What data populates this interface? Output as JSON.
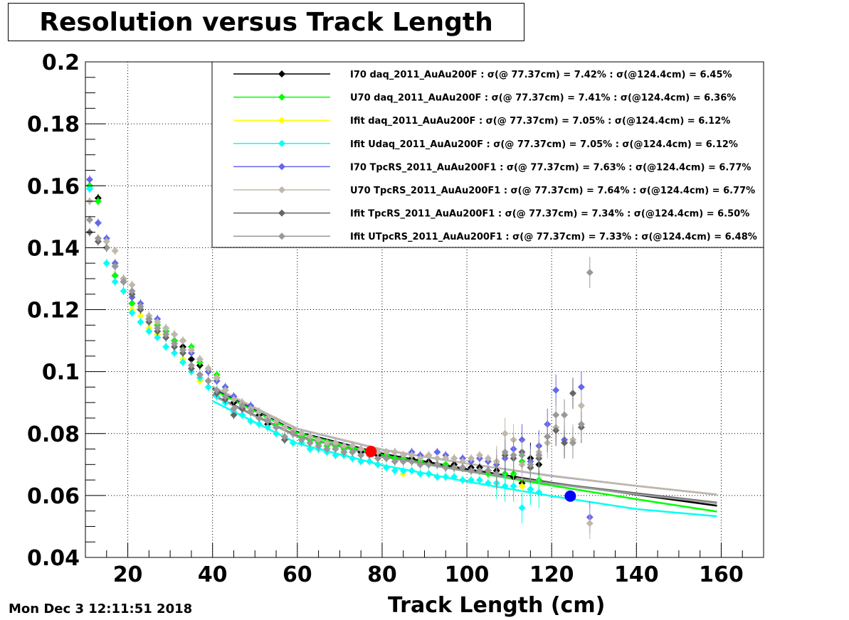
{
  "title": "Resolution versus Track Length",
  "timestamp": "Mon Dec  3 12:11:51 2018",
  "chart_data": {
    "type": "scatter",
    "title": "Resolution versus Track Length",
    "xlabel": "Track Length (cm)",
    "ylabel": "",
    "xlim": [
      10,
      170
    ],
    "ylim": [
      0.04,
      0.2
    ],
    "xticks": [
      20,
      40,
      60,
      80,
      100,
      120,
      140,
      160
    ],
    "xtick_labels": [
      "20",
      "40",
      "60",
      "80",
      "100",
      "120",
      "140",
      "160"
    ],
    "yticks": [
      0.04,
      0.06,
      0.08,
      0.1,
      0.12,
      0.14,
      0.16,
      0.18,
      0.2
    ],
    "ytick_labels": [
      "0.04",
      "0.06",
      "0.08",
      "0.1",
      "0.12",
      "0.14",
      "0.16",
      "0.18",
      "0.2"
    ],
    "grid": true,
    "legend_position": "top-right",
    "x": [
      11,
      13,
      15,
      17,
      19,
      21,
      23,
      25,
      27,
      29,
      31,
      33,
      35,
      37,
      39,
      41,
      43,
      45,
      47,
      49,
      51,
      53,
      55,
      57,
      59,
      61,
      63,
      65,
      67,
      69,
      71,
      73,
      75,
      77,
      79,
      81,
      83,
      85,
      87,
      89,
      91,
      93,
      95,
      97,
      99,
      101,
      103,
      105,
      107,
      109,
      111,
      113,
      115,
      117,
      119,
      121,
      123,
      125,
      127,
      129
    ],
    "series": [
      {
        "name": "I70  daq_2011_AuAu200F : σ(@ 77.37cm) =  7.42% : σ(@124.4cm) =  6.45%",
        "color": "#000000",
        "fit": {
          "x": [
            40,
            60,
            80,
            100,
            120,
            140,
            159
          ],
          "y": [
            0.0945,
            0.0805,
            0.0735,
            0.0685,
            0.0641,
            0.0603,
            0.0567
          ]
        },
        "values": [
          0.16,
          0.156,
          0.14,
          0.131,
          0.13,
          0.122,
          0.12,
          0.117,
          0.115,
          0.113,
          0.11,
          0.108,
          0.104,
          0.102,
          0.1,
          0.098,
          0.094,
          0.09,
          0.088,
          0.087,
          0.086,
          0.083,
          0.084,
          0.082,
          0.08,
          0.079,
          0.078,
          0.077,
          0.077,
          0.076,
          0.075,
          0.075,
          0.074,
          0.074,
          0.073,
          0.073,
          0.072,
          0.072,
          0.072,
          0.071,
          0.071,
          0.07,
          0.07,
          0.07,
          0.069,
          0.069,
          0.069,
          0.068,
          0.068,
          0.067,
          0.066,
          0.064,
          0.072,
          0.07,
          null,
          null,
          null,
          null,
          null,
          null
        ]
      },
      {
        "name": "U70  daq_2011_AuAu200F : σ(@ 77.37cm) =  7.41% : σ(@124.4cm) =  6.36%",
        "color": "#00ff00",
        "fit": {
          "x": [
            40,
            60,
            80,
            100,
            120,
            140,
            159
          ],
          "y": [
            0.0942,
            0.0802,
            0.0731,
            0.0679,
            0.0632,
            0.0588,
            0.0548
          ]
        },
        "values": [
          0.16,
          0.155,
          0.14,
          0.131,
          0.129,
          0.122,
          0.12,
          0.117,
          0.115,
          0.113,
          0.11,
          0.107,
          0.108,
          0.103,
          0.101,
          0.099,
          0.095,
          0.092,
          0.09,
          0.088,
          0.087,
          0.085,
          0.083,
          0.082,
          0.081,
          0.079,
          0.078,
          0.077,
          0.076,
          0.076,
          0.075,
          0.075,
          0.075,
          0.074,
          0.074,
          0.073,
          0.072,
          0.072,
          0.071,
          0.071,
          0.07,
          0.07,
          0.07,
          0.069,
          0.069,
          0.068,
          0.068,
          0.067,
          0.067,
          0.067,
          0.067,
          0.071,
          0.062,
          0.065,
          null,
          null,
          null,
          null,
          null,
          null
        ]
      },
      {
        "name": "Ifit daq_2011_AuAu200F : σ(@ 77.37cm) =  7.05% : σ(@124.4cm) =  6.12%",
        "color": "#ffff00",
        "fit": {
          "x": [
            40,
            60,
            80,
            100,
            120,
            140,
            159
          ],
          "y": [
            0.0905,
            0.0768,
            0.0698,
            0.0645,
            0.0598,
            0.0556,
            0.0533
          ]
        },
        "values": [
          0.159,
          0.148,
          0.135,
          0.129,
          0.126,
          0.12,
          0.118,
          0.114,
          0.112,
          0.108,
          0.106,
          0.104,
          0.1,
          0.097,
          0.095,
          0.092,
          0.09,
          0.087,
          0.086,
          0.084,
          0.083,
          0.082,
          0.08,
          0.079,
          0.077,
          0.077,
          0.075,
          0.075,
          0.074,
          0.073,
          0.073,
          0.072,
          0.071,
          0.071,
          0.07,
          0.069,
          0.068,
          0.067,
          0.068,
          0.067,
          0.067,
          0.066,
          0.066,
          0.066,
          0.065,
          0.065,
          0.065,
          0.064,
          0.064,
          0.063,
          0.063,
          0.063,
          0.062,
          0.061,
          null,
          null,
          null,
          null,
          null,
          null
        ]
      },
      {
        "name": "Ifit Udaq_2011_AuAu200F : σ(@ 77.37cm) =  7.05% : σ(@124.4cm) =  6.12%",
        "color": "#00ffff",
        "fit": {
          "x": [
            40,
            60,
            80,
            100,
            120,
            140,
            159
          ],
          "y": [
            0.0905,
            0.0768,
            0.0698,
            0.0645,
            0.0598,
            0.0556,
            0.0533
          ]
        },
        "values": [
          0.159,
          0.148,
          0.135,
          0.129,
          0.126,
          0.119,
          0.116,
          0.113,
          0.111,
          0.108,
          0.106,
          0.103,
          0.1,
          0.098,
          0.095,
          0.092,
          0.09,
          0.087,
          0.086,
          0.084,
          0.083,
          0.082,
          0.08,
          0.079,
          0.077,
          0.077,
          0.075,
          0.075,
          0.074,
          0.073,
          0.073,
          0.072,
          0.071,
          0.071,
          0.07,
          0.069,
          0.068,
          0.068,
          0.068,
          0.067,
          0.067,
          0.066,
          0.066,
          0.066,
          0.065,
          0.065,
          0.065,
          0.064,
          0.064,
          0.063,
          0.063,
          0.056,
          0.062,
          0.061,
          null,
          null,
          null,
          null,
          null,
          null
        ]
      },
      {
        "name": "I70  TpcRS_2011_AuAu200F1 : σ(@ 77.37cm) =  7.63% : σ(@124.4cm) =  6.77%",
        "color": "#6666ee",
        "fit": {
          "x": [
            40,
            60,
            80,
            100,
            120,
            140,
            159
          ],
          "y": [
            0.095,
            0.0815,
            0.0748,
            0.0703,
            0.0663,
            0.0631,
            0.0603
          ]
        },
        "values": [
          0.162,
          0.148,
          0.143,
          0.135,
          0.129,
          0.124,
          0.122,
          0.118,
          0.117,
          0.114,
          0.112,
          0.11,
          0.106,
          0.104,
          0.1,
          0.097,
          0.095,
          0.092,
          0.09,
          0.089,
          0.087,
          0.085,
          0.084,
          0.082,
          0.081,
          0.08,
          0.079,
          0.078,
          0.077,
          0.077,
          0.076,
          0.076,
          0.075,
          0.075,
          0.074,
          0.074,
          0.074,
          0.073,
          0.074,
          0.073,
          0.073,
          0.074,
          0.073,
          0.072,
          0.072,
          0.071,
          0.072,
          0.071,
          0.07,
          0.072,
          0.075,
          0.078,
          0.071,
          0.076,
          0.083,
          0.094,
          0.078,
          0.077,
          0.095,
          0.053
        ]
      },
      {
        "name": "U70  TpcRS_2011_AuAu200F1 : σ(@ 77.37cm) =  7.64% : σ(@124.4cm) =  6.77%",
        "color": "#c0b8a8",
        "fit": {
          "x": [
            40,
            60,
            80,
            100,
            120,
            140,
            159
          ],
          "y": [
            0.0952,
            0.0816,
            0.0749,
            0.0703,
            0.0664,
            0.0631,
            0.0603
          ]
        },
        "values": [
          0.155,
          0.143,
          0.142,
          0.139,
          0.13,
          0.128,
          0.12,
          0.118,
          0.116,
          0.114,
          0.112,
          0.11,
          0.107,
          0.104,
          0.101,
          0.098,
          0.094,
          0.091,
          0.09,
          0.088,
          0.087,
          0.085,
          0.084,
          0.082,
          0.081,
          0.08,
          0.079,
          0.078,
          0.077,
          0.077,
          0.076,
          0.076,
          0.075,
          0.075,
          0.074,
          0.074,
          0.074,
          0.073,
          0.073,
          0.072,
          0.073,
          0.072,
          0.072,
          0.072,
          0.071,
          0.072,
          0.073,
          0.072,
          0.071,
          0.08,
          0.078,
          0.07,
          0.069,
          0.074,
          0.077,
          0.082,
          0.086,
          0.078,
          0.089,
          0.051
        ]
      },
      {
        "name": "Ifit TpcRS_2011_AuAu200F1 : σ(@ 77.37cm) =  7.34% : σ(@124.4cm) =  6.50%",
        "color": "#666666",
        "fit": {
          "x": [
            40,
            60,
            80,
            100,
            120,
            140,
            159
          ],
          "y": [
            0.0925,
            0.0792,
            0.0727,
            0.068,
            0.064,
            0.0607,
            0.0577
          ]
        },
        "values": [
          0.145,
          0.142,
          0.14,
          0.134,
          0.129,
          0.125,
          0.12,
          0.116,
          0.113,
          0.111,
          0.108,
          0.106,
          0.101,
          0.099,
          0.097,
          0.093,
          0.091,
          0.086,
          0.088,
          0.087,
          0.085,
          0.084,
          0.082,
          0.078,
          0.08,
          0.078,
          0.077,
          0.076,
          0.075,
          0.075,
          0.074,
          0.074,
          0.073,
          0.073,
          0.072,
          0.072,
          0.071,
          0.071,
          0.071,
          0.07,
          0.07,
          0.07,
          0.069,
          0.069,
          0.069,
          0.068,
          0.068,
          0.068,
          0.067,
          0.073,
          0.072,
          0.074,
          0.069,
          0.072,
          0.079,
          0.081,
          0.077,
          0.093,
          0.082,
          null
        ]
      },
      {
        "name": "Ifit UTpcRS_2011_AuAu200F1 : σ(@ 77.37cm) =  7.33% : σ(@124.4cm) =  6.48%",
        "color": "#999999",
        "fit": {
          "x": [
            40,
            60,
            80,
            100,
            120,
            140,
            159
          ],
          "y": [
            0.0923,
            0.079,
            0.0725,
            0.0678,
            0.0638,
            0.0604,
            0.0575
          ]
        },
        "values": [
          0.149,
          0.143,
          0.14,
          0.134,
          0.129,
          0.126,
          0.121,
          0.117,
          0.114,
          0.112,
          0.109,
          0.107,
          0.102,
          0.099,
          0.097,
          0.094,
          0.092,
          0.088,
          0.089,
          0.087,
          0.085,
          0.084,
          0.082,
          0.079,
          0.08,
          0.078,
          0.077,
          0.076,
          0.075,
          0.075,
          0.074,
          0.074,
          0.073,
          0.073,
          0.072,
          0.072,
          0.071,
          0.071,
          0.071,
          0.07,
          0.07,
          0.07,
          0.069,
          0.069,
          0.069,
          0.068,
          0.068,
          0.068,
          0.067,
          0.074,
          0.073,
          0.073,
          0.07,
          0.073,
          0.079,
          0.086,
          0.086,
          0.077,
          0.083,
          0.132
        ]
      }
    ],
    "highlight_points": [
      {
        "x": 77.37,
        "y": 0.0742,
        "color": "#ff0000"
      },
      {
        "x": 124.4,
        "y": 0.0598,
        "color": "#0000ff"
      }
    ]
  }
}
